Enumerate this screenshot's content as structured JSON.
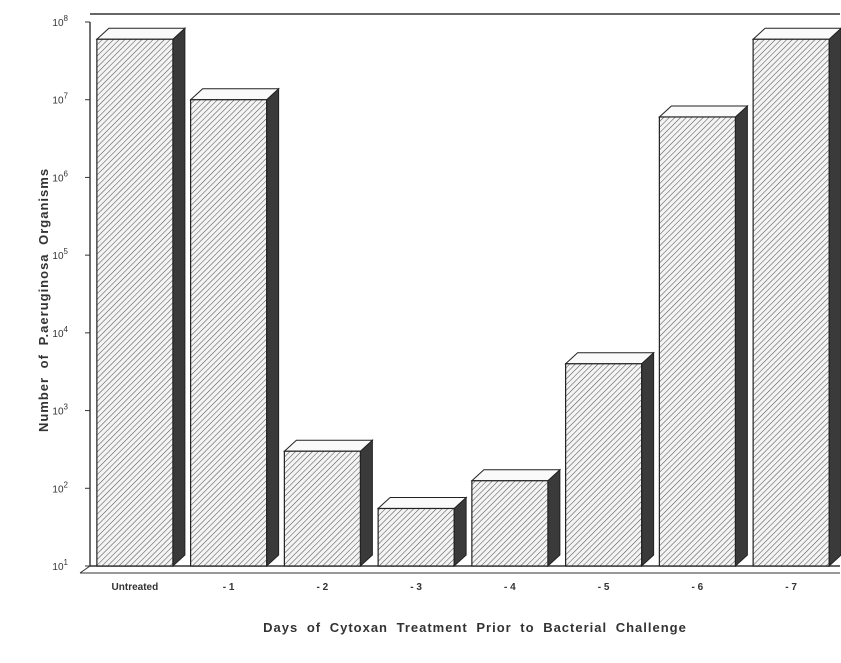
{
  "chart_data": {
    "type": "bar",
    "title": "",
    "xlabel": "Days of Cytoxan Treatment Prior to Bacterial Challenge",
    "ylabel": "Number of P.aeruginosa Organisms",
    "y_scale": "log10",
    "ylim": [
      10,
      100000000
    ],
    "yticks": [
      {
        "exp": 1,
        "base": "10",
        "sup": "1"
      },
      {
        "exp": 2,
        "base": "10",
        "sup": "2"
      },
      {
        "exp": 3,
        "base": "10",
        "sup": "3"
      },
      {
        "exp": 4,
        "base": "10",
        "sup": "4"
      },
      {
        "exp": 5,
        "base": "10",
        "sup": "5"
      },
      {
        "exp": 6,
        "base": "10",
        "sup": "6"
      },
      {
        "exp": 7,
        "base": "10",
        "sup": "7"
      },
      {
        "exp": 8,
        "base": "10",
        "sup": "8"
      }
    ],
    "categories": [
      "Untreated",
      "- 1",
      "- 2",
      "- 3",
      "- 4",
      "- 5",
      "- 6",
      "- 7"
    ],
    "values": [
      60000000,
      10000000,
      300,
      55,
      125,
      4000,
      6000000,
      60000000
    ],
    "grid": false,
    "legend": "none",
    "bar_style": "3d-hatched",
    "colors": {
      "bar_face": "#f4f4f4",
      "bar_hatch": "#555555",
      "bar_side": "#3a3a3a",
      "bar_top": "#fafafa",
      "axis": "#333333"
    }
  }
}
